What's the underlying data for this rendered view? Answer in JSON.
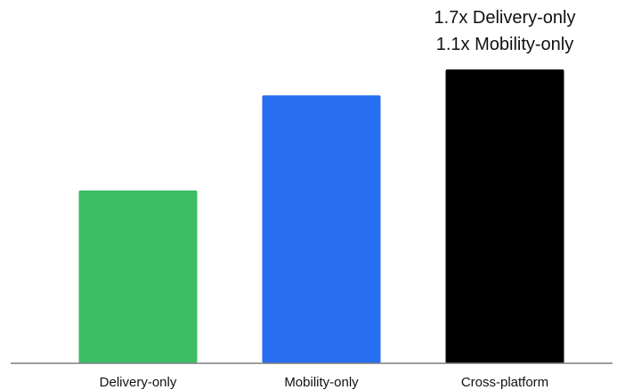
{
  "chart_data": {
    "type": "bar",
    "categories": [
      "Delivery-only",
      "Mobility-only",
      "Cross-platform"
    ],
    "values": [
      1.0,
      1.55,
      1.7
    ],
    "colors": [
      "#3dbd66",
      "#276ef1",
      "#000000"
    ],
    "ylim": [
      0,
      1.75
    ],
    "grid": false,
    "legend": "none",
    "annotations": [
      {
        "category": "Cross-platform",
        "lines": [
          "1.7x Delivery-only",
          "1.1x Mobility-only"
        ]
      }
    ]
  }
}
